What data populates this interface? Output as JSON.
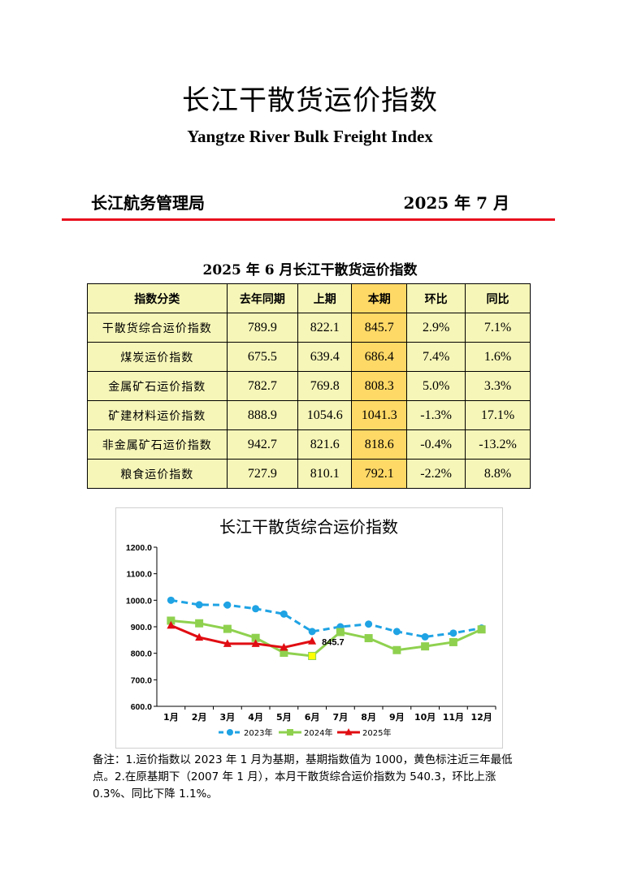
{
  "header": {
    "title": "长江干散货运价指数",
    "subtitle": "Yangtze River Bulk Freight Index",
    "issuer": "长江航务管理局",
    "issue_date": "2025 年 7 月"
  },
  "table": {
    "title": "2025 年 6 月长江干散货运价指数",
    "columns": [
      "指数分类",
      "去年同期",
      "上期",
      "本期",
      "环比",
      "同比"
    ],
    "rows": [
      [
        "干散货综合运价指数",
        "789.9",
        "822.1",
        "845.7",
        "2.9%",
        "7.1%"
      ],
      [
        "煤炭运价指数",
        "675.5",
        "639.4",
        "686.4",
        "7.4%",
        "1.6%"
      ],
      [
        "金属矿石运价指数",
        "782.7",
        "769.8",
        "808.3",
        "5.0%",
        "3.3%"
      ],
      [
        "矿建材料运价指数",
        "888.9",
        "1054.6",
        "1041.3",
        "-1.3%",
        "17.1%"
      ],
      [
        "非金属矿石运价指数",
        "942.7",
        "821.6",
        "818.6",
        "-0.4%",
        "-13.2%"
      ],
      [
        "粮食运价指数",
        "727.9",
        "810.1",
        "792.1",
        "-2.2%",
        "8.8%"
      ]
    ],
    "colors": {
      "table_bg": "#f6f6b8",
      "current_bg": "#ffd966"
    }
  },
  "chart_data": {
    "type": "line",
    "title": "长江干散货综合运价指数",
    "categories": [
      "1月",
      "2月",
      "3月",
      "4月",
      "5月",
      "6月",
      "7月",
      "8月",
      "9月",
      "10月",
      "11月",
      "12月"
    ],
    "ylim": [
      600,
      1200
    ],
    "yticks": [
      "600.0",
      "700.0",
      "800.0",
      "900.0",
      "1000.0",
      "1100.0",
      "1200.0"
    ],
    "grid": false,
    "legend_position": "bottom",
    "series": [
      {
        "name": "2023年",
        "color": "#1fa3e4",
        "dashed": true,
        "marker": "circle",
        "values": [
          1000,
          983,
          982,
          968,
          948,
          882,
          900,
          910,
          882,
          862,
          876,
          895
        ]
      },
      {
        "name": "2024年",
        "color": "#8fd14f",
        "dashed": false,
        "marker": "square",
        "values": [
          923,
          913,
          892,
          858,
          802,
          789.9,
          880,
          857,
          812,
          826,
          842,
          890
        ]
      },
      {
        "name": "2025年",
        "color": "#e00d12",
        "dashed": false,
        "marker": "triangle",
        "values": [
          905,
          860,
          836,
          836,
          822.1,
          845.7,
          null,
          null,
          null,
          null,
          null,
          null
        ]
      }
    ],
    "highlight": {
      "series": "2024年",
      "index": 5,
      "color": "#ffff00"
    },
    "annotation": "845.7"
  },
  "note": {
    "text": "备注：1.运价指数以 2023 年 1 月为基期，基期指数值为 1000，黄色标注近三年最低点。2.在原基期下（2007 年 1 月），本月干散货综合运价指数为 540.3，环比上涨 0.3%、同比下降 1.1%。"
  }
}
